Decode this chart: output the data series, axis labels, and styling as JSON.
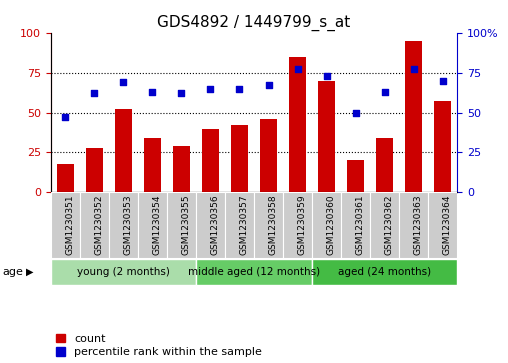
{
  "title": "GDS4892 / 1449799_s_at",
  "samples": [
    "GSM1230351",
    "GSM1230352",
    "GSM1230353",
    "GSM1230354",
    "GSM1230355",
    "GSM1230356",
    "GSM1230357",
    "GSM1230358",
    "GSM1230359",
    "GSM1230360",
    "GSM1230361",
    "GSM1230362",
    "GSM1230363",
    "GSM1230364"
  ],
  "counts": [
    18,
    28,
    52,
    34,
    29,
    40,
    42,
    46,
    85,
    70,
    20,
    34,
    95,
    57
  ],
  "percentiles": [
    47,
    62,
    69,
    63,
    62,
    65,
    65,
    67,
    77,
    73,
    50,
    63,
    77,
    70
  ],
  "bar_color": "#cc0000",
  "dot_color": "#0000cc",
  "ylim_left": [
    0,
    100
  ],
  "ylim_right": [
    0,
    100
  ],
  "yticks": [
    0,
    25,
    50,
    75,
    100
  ],
  "groups": [
    {
      "label": "young (2 months)",
      "start": 0,
      "end": 5,
      "color": "#aaddaa"
    },
    {
      "label": "middle aged (12 months)",
      "start": 5,
      "end": 9,
      "color": "#66cc66"
    },
    {
      "label": "aged (24 months)",
      "start": 9,
      "end": 14,
      "color": "#44bb44"
    }
  ],
  "age_label": "age",
  "legend_count_label": "count",
  "legend_pct_label": "percentile rank within the sample",
  "bg_xtick": "#cccccc",
  "title_fontsize": 11
}
